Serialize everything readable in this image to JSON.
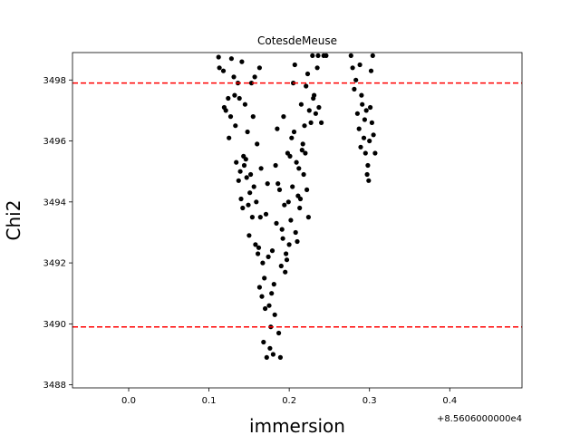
{
  "chart_data": {
    "type": "scatter",
    "title": "CotesdeMeuse",
    "xlabel": "immersion",
    "ylabel": "Chi2",
    "x_offset_label": "+8.5606000000e4",
    "xlim": [
      -0.07,
      0.49
    ],
    "ylim": [
      3487.9,
      3498.9
    ],
    "x_ticks": [
      0.0,
      0.1,
      0.2,
      0.3,
      0.4
    ],
    "x_tick_labels": [
      "0.0",
      "0.1",
      "0.2",
      "0.3",
      "0.4"
    ],
    "y_ticks": [
      3488,
      3490,
      3492,
      3494,
      3496,
      3498
    ],
    "y_tick_labels": [
      "3488",
      "3490",
      "3492",
      "3494",
      "3496",
      "3498"
    ],
    "grid": false,
    "reference_lines": [
      {
        "y": 3497.9,
        "color": "#ff0000",
        "style": "dashed"
      },
      {
        "y": 3489.9,
        "color": "#ff0000",
        "style": "dashed"
      }
    ],
    "series": [
      {
        "color": "#000000",
        "points": [
          [
            0.112,
            3498.75
          ],
          [
            0.118,
            3498.3
          ],
          [
            0.121,
            3497.0
          ],
          [
            0.124,
            3497.4
          ],
          [
            0.127,
            3496.8
          ],
          [
            0.128,
            3498.7
          ],
          [
            0.131,
            3498.1
          ],
          [
            0.133,
            3496.5
          ],
          [
            0.136,
            3497.9
          ],
          [
            0.138,
            3497.4
          ],
          [
            0.141,
            3498.6
          ],
          [
            0.143,
            3495.5
          ],
          [
            0.145,
            3497.2
          ],
          [
            0.147,
            3494.8
          ],
          [
            0.149,
            3493.9
          ],
          [
            0.151,
            3494.3
          ],
          [
            0.153,
            3497.9
          ],
          [
            0.155,
            3496.8
          ],
          [
            0.157,
            3498.1
          ],
          [
            0.159,
            3494.0
          ],
          [
            0.161,
            3492.3
          ],
          [
            0.163,
            3498.4
          ],
          [
            0.165,
            3495.1
          ],
          [
            0.167,
            3492.0
          ],
          [
            0.169,
            3491.5
          ],
          [
            0.171,
            3493.6
          ],
          [
            0.173,
            3494.6
          ],
          [
            0.175,
            3490.6
          ],
          [
            0.177,
            3489.9
          ],
          [
            0.179,
            3492.4
          ],
          [
            0.181,
            3491.3
          ],
          [
            0.183,
            3495.2
          ],
          [
            0.185,
            3496.4
          ],
          [
            0.187,
            3489.7
          ],
          [
            0.189,
            3488.9
          ],
          [
            0.191,
            3493.1
          ],
          [
            0.193,
            3496.8
          ],
          [
            0.195,
            3491.7
          ],
          [
            0.197,
            3492.1
          ],
          [
            0.199,
            3494.0
          ],
          [
            0.201,
            3495.5
          ],
          [
            0.203,
            3496.1
          ],
          [
            0.205,
            3497.9
          ],
          [
            0.207,
            3498.5
          ],
          [
            0.209,
            3495.3
          ],
          [
            0.211,
            3494.2
          ],
          [
            0.213,
            3493.8
          ],
          [
            0.215,
            3497.2
          ],
          [
            0.217,
            3495.9
          ],
          [
            0.219,
            3496.5
          ],
          [
            0.221,
            3497.8
          ],
          [
            0.223,
            3498.2
          ],
          [
            0.225,
            3497.0
          ],
          [
            0.227,
            3496.6
          ],
          [
            0.229,
            3498.8
          ],
          [
            0.231,
            3497.5
          ],
          [
            0.233,
            3496.9
          ],
          [
            0.235,
            3498.4
          ],
          [
            0.237,
            3497.1
          ],
          [
            0.24,
            3496.6
          ],
          [
            0.243,
            3498.8
          ],
          [
            0.246,
            3498.8
          ],
          [
            0.113,
            3498.4
          ],
          [
            0.119,
            3497.1
          ],
          [
            0.125,
            3496.1
          ],
          [
            0.132,
            3497.5
          ],
          [
            0.139,
            3495.0
          ],
          [
            0.146,
            3495.4
          ],
          [
            0.152,
            3494.9
          ],
          [
            0.158,
            3492.6
          ],
          [
            0.164,
            3493.5
          ],
          [
            0.17,
            3490.5
          ],
          [
            0.176,
            3489.2
          ],
          [
            0.182,
            3490.3
          ],
          [
            0.188,
            3494.4
          ],
          [
            0.194,
            3493.9
          ],
          [
            0.2,
            3492.6
          ],
          [
            0.206,
            3496.3
          ],
          [
            0.212,
            3495.1
          ],
          [
            0.218,
            3494.9
          ],
          [
            0.224,
            3493.5
          ],
          [
            0.23,
            3497.4
          ],
          [
            0.236,
            3498.8
          ],
          [
            0.163,
            3491.2
          ],
          [
            0.166,
            3490.9
          ],
          [
            0.168,
            3489.4
          ],
          [
            0.172,
            3488.9
          ],
          [
            0.174,
            3492.2
          ],
          [
            0.178,
            3491.0
          ],
          [
            0.18,
            3489.0
          ],
          [
            0.184,
            3493.3
          ],
          [
            0.186,
            3494.6
          ],
          [
            0.19,
            3491.9
          ],
          [
            0.192,
            3492.8
          ],
          [
            0.196,
            3492.3
          ],
          [
            0.198,
            3495.6
          ],
          [
            0.202,
            3493.4
          ],
          [
            0.204,
            3494.5
          ],
          [
            0.208,
            3493.0
          ],
          [
            0.21,
            3492.7
          ],
          [
            0.214,
            3494.1
          ],
          [
            0.216,
            3495.7
          ],
          [
            0.22,
            3495.6
          ],
          [
            0.222,
            3494.4
          ],
          [
            0.15,
            3492.9
          ],
          [
            0.154,
            3493.5
          ],
          [
            0.156,
            3494.5
          ],
          [
            0.16,
            3495.9
          ],
          [
            0.162,
            3492.5
          ],
          [
            0.134,
            3495.3
          ],
          [
            0.137,
            3494.7
          ],
          [
            0.14,
            3494.1
          ],
          [
            0.142,
            3493.8
          ],
          [
            0.144,
            3495.2
          ],
          [
            0.148,
            3496.3
          ],
          [
            0.277,
            3498.8
          ],
          [
            0.279,
            3498.4
          ],
          [
            0.281,
            3497.7
          ],
          [
            0.283,
            3498.0
          ],
          [
            0.285,
            3496.9
          ],
          [
            0.287,
            3496.4
          ],
          [
            0.289,
            3495.8
          ],
          [
            0.291,
            3497.2
          ],
          [
            0.293,
            3496.1
          ],
          [
            0.295,
            3495.6
          ],
          [
            0.297,
            3494.9
          ],
          [
            0.299,
            3494.7
          ],
          [
            0.301,
            3497.1
          ],
          [
            0.303,
            3496.6
          ],
          [
            0.305,
            3496.2
          ],
          [
            0.307,
            3495.6
          ],
          [
            0.29,
            3497.5
          ],
          [
            0.294,
            3496.7
          ],
          [
            0.298,
            3495.2
          ],
          [
            0.302,
            3498.3
          ],
          [
            0.304,
            3498.8
          ],
          [
            0.288,
            3498.5
          ],
          [
            0.296,
            3497.0
          ],
          [
            0.3,
            3496.0
          ]
        ]
      }
    ]
  }
}
